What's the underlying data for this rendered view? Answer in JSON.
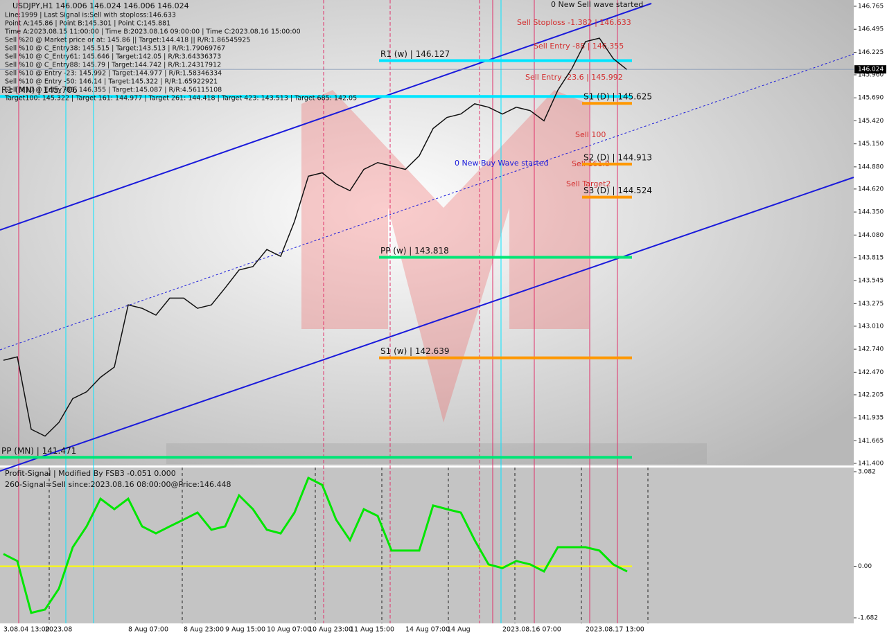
{
  "chart_data": [
    {
      "type": "line",
      "title": "USDJPY,H1  146.006 146.024 146.006 146.024",
      "info_lines": [
        "Line:1999 | Last Signal is:Sell with stoploss:146.633",
        "Point A:145.86 | Point B:145.301 | Point C:145.881",
        "Time A:2023.08.15 11:00:00 | Time B:2023.08.16 09:00:00 | Time C:2023.08.16 15:00:00",
        "Sell %20 @ Market price or at: 145.86 || Target:144.418 || R/R:1.86545925",
        "Sell %10 @ C_Entry38: 145.515 | Target:143.513 | R/R:1.79069767",
        "Sell %10 @ C_Entry61: 145.646 | Target:142.05 | R/R:3.64336373",
        "Sell %10 @ C_Entry88: 145.79 | Target:144.742 | R/R:1.24317912",
        "Sell %10 @ Entry -23: 145.992 | Target:144.977 | R/R:1.58346334",
        "Sell %10 @ Entry -50: 146.14 | Target:145.322 | R/R:1.65922921",
        "Sell %10 @ Entry -88: 146.355 | Target:145.087 | R/R:4.56115108",
        "Target100: 145.322 | Target 161: 144.977 | Target 261: 144.418 | Target 423: 143.513 | Target 685: 142.05"
      ],
      "annotations": [
        "0 New Sell wave started",
        "Sell Stoploss -1.382 | 146.633",
        "Sell Entry -88 | 146.355",
        "Sell Entry -23.6 | 145.992",
        "Sell 100",
        "Sell 161.8",
        "Sell Target2",
        "0 New Buy Wave started"
      ],
      "categories": [
        "3.08.04 13:00",
        null,
        null,
        "2023.08",
        null,
        null,
        null,
        null,
        null,
        "8 Aug 07:00",
        null,
        null,
        null,
        "8 Aug 23:00",
        null,
        null,
        "9 Aug 15:00",
        null,
        null,
        "10 Aug 07:00",
        null,
        null,
        "10 Aug 23:00",
        null,
        null,
        "11 Aug 15:00",
        null,
        null,
        null,
        "14 Aug 07:00",
        null,
        null,
        "14 Aug",
        null,
        null,
        null,
        "2023.08.16 07:00",
        null,
        null,
        null,
        null,
        null,
        "2023.08.17 13:00",
        null,
        null,
        null
      ],
      "series": [
        {
          "name": "USDJPY",
          "color": "#111111",
          "values": [
            142.61,
            142.65,
            141.8,
            141.72,
            141.88,
            142.16,
            142.24,
            142.41,
            142.53,
            143.26,
            143.22,
            143.14,
            143.34,
            143.34,
            143.22,
            143.26,
            143.46,
            143.67,
            143.71,
            143.91,
            143.83,
            144.24,
            144.77,
            144.81,
            144.68,
            144.6,
            144.85,
            144.93,
            144.89,
            144.85,
            145.01,
            145.33,
            145.46,
            145.5,
            145.62,
            145.58,
            145.5,
            145.58,
            145.54,
            145.42,
            145.78,
            146.03,
            146.35,
            146.39,
            146.15,
            146.02
          ]
        }
      ],
      "last_price": {
        "value": 146.024,
        "label": "146.024"
      },
      "levels": [
        {
          "text": "R1 (w) | 146.127",
          "value": 146.127,
          "color": "#00e5ff"
        },
        {
          "text": "R1 (MN) | 145.706",
          "value": 145.706,
          "color": "#00e5ff"
        },
        {
          "text": "S1 (D) | 145.625",
          "value": 145.625,
          "color": "#ff9800"
        },
        {
          "text": "S2 (D) | 144.913",
          "value": 144.913,
          "color": "#ff9800"
        },
        {
          "text": "S3 (D) | 144.524",
          "value": 144.524,
          "color": "#ff9800"
        },
        {
          "text": "PP (w) | 143.818",
          "value": 143.818,
          "color": "#00e676"
        },
        {
          "text": "S1 (w) | 142.639",
          "value": 142.639,
          "color": "#ff9800"
        },
        {
          "text": "PP (MN) | 141.471",
          "value": 141.471,
          "color": "#00e676"
        }
      ],
      "ylim": [
        141.4,
        146.765
      ],
      "yticks": [
        {
          "value": 146.765,
          "label": "146.765"
        },
        {
          "value": 146.495,
          "label": "146.495"
        },
        {
          "value": 146.225,
          "label": "146.225"
        },
        {
          "value": 145.96,
          "label": "145.960"
        },
        {
          "value": 145.69,
          "label": "145.690"
        },
        {
          "value": 145.42,
          "label": "145.420"
        },
        {
          "value": 145.15,
          "label": "145.150"
        },
        {
          "value": 144.88,
          "label": "144.880"
        },
        {
          "value": 144.62,
          "label": "144.620"
        },
        {
          "value": 144.35,
          "label": "144.350"
        },
        {
          "value": 144.08,
          "label": "144.080"
        },
        {
          "value": 143.815,
          "label": "143.815"
        },
        {
          "value": 143.545,
          "label": "143.545"
        },
        {
          "value": 143.275,
          "label": "143.275"
        },
        {
          "value": 143.01,
          "label": "143.010"
        },
        {
          "value": 142.74,
          "label": "142.740"
        },
        {
          "value": 142.47,
          "label": "142.470"
        },
        {
          "value": 142.205,
          "label": "142.205"
        },
        {
          "value": 141.935,
          "label": "141.935"
        },
        {
          "value": 141.665,
          "label": "141.665"
        },
        {
          "value": 141.4,
          "label": "141.400"
        }
      ]
    },
    {
      "type": "line",
      "title": "Profit-Signal | Modified By FSB3 -0.051 0.000",
      "subtitle": "260-Signal=Sell since:2023.08.16 08:00:00@Price:146.448",
      "series": [
        {
          "name": "Profit-Signal",
          "color": "#00e600",
          "values": [
            0.4,
            0.17,
            -1.52,
            -1.41,
            -0.73,
            0.62,
            1.3,
            2.2,
            1.86,
            2.2,
            1.3,
            1.07,
            1.3,
            1.52,
            1.75,
            1.19,
            1.3,
            2.31,
            1.86,
            1.19,
            1.07,
            1.75,
            2.88,
            2.65,
            1.52,
            0.85,
            1.86,
            1.64,
            0.51,
            0.51,
            0.51,
            1.98,
            1.86,
            1.75,
            0.85,
            0.06,
            -0.06,
            0.17,
            0.06,
            -0.17,
            0.62,
            0.62,
            0.62,
            0.51,
            0.06,
            -0.17
          ]
        }
      ],
      "ylim": [
        -1.682,
        3.082
      ],
      "yticks": [
        {
          "value": 3.082,
          "label": "3.082"
        },
        {
          "value": 0,
          "label": "0.00"
        },
        {
          "value": -1.682,
          "label": "-1.682"
        }
      ]
    }
  ]
}
